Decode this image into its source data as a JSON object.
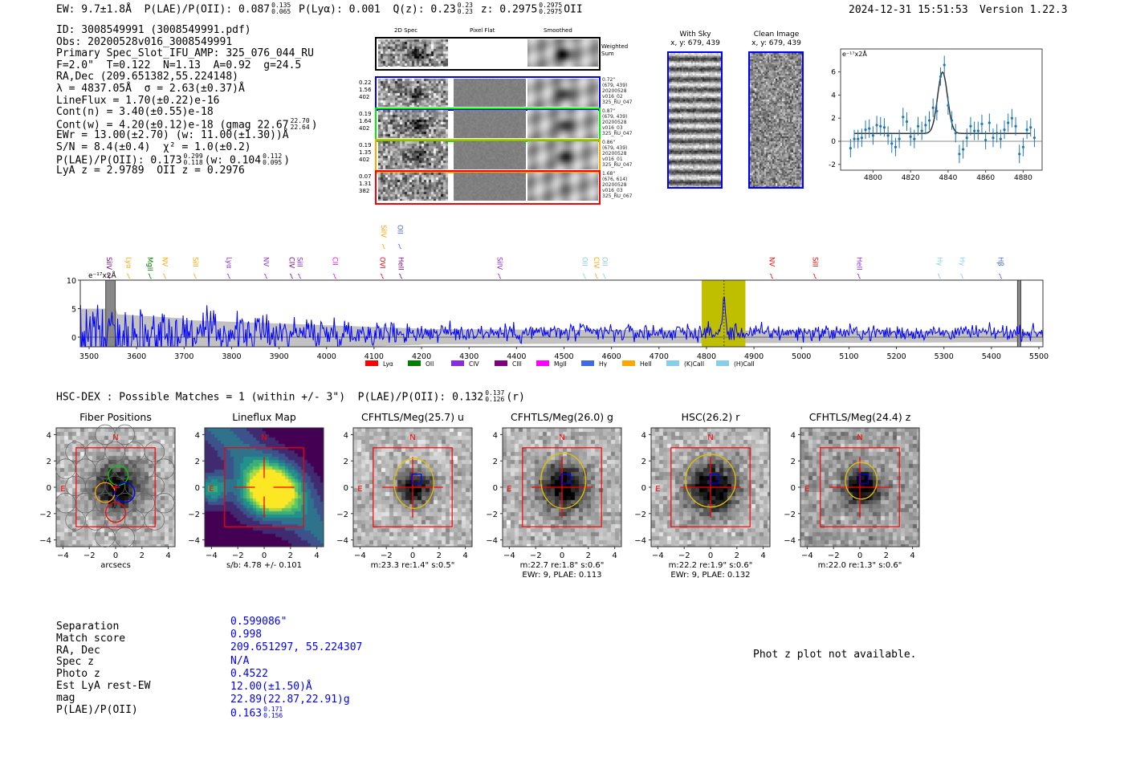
{
  "header": {
    "ew": "EW: 9.7±1.8Å",
    "plae": "P(LAE)/P(OII): 0.087",
    "plae_hi": "0.135",
    "plae_lo": "0.065",
    "plya": "P(Lyα): 0.001",
    "qz": "Q(z): 0.23",
    "qz_hi": "0.23",
    "qz_lo": "0.23",
    "z": "z: 0.2975",
    "z_hi": "0.2975",
    "z_lo": "0.2975",
    "z_line": "OII",
    "datetime": "2024-12-31 15:51:53",
    "version": "Version 1.22.3"
  },
  "info": {
    "lines": [
      {
        "seg": [
          {
            "t": "ID: 3008549991 (3008549991.pdf)"
          }
        ]
      },
      {
        "seg": [
          {
            "t": "Obs: 20200528v016_3008549991"
          }
        ]
      },
      {
        "seg": [
          {
            "t": "Primary Spec_Slot_IFU_AMP: 325_076_044_RU"
          }
        ]
      },
      {
        "seg": [
          {
            "t": "F=2.0\"  T=0.122  N=1.13  A=0.92  g=24.5"
          }
        ]
      },
      {
        "seg": [
          {
            "t": "RA,Dec (209.651382,55.224148)"
          }
        ]
      },
      {
        "seg": [
          {
            "t": "λ = 4837.05Å  σ = 2.63(±0.37)Å"
          }
        ]
      },
      {
        "seg": [
          {
            "t": "LineFlux = 1.70(±0.22)e-16"
          }
        ]
      },
      {
        "seg": [
          {
            "t": "Cont(n) = 3.40(±0.55)e-18"
          }
        ]
      },
      {
        "seg": [
          {
            "t": "Cont(w) = 4.20(±0.12)e-18 (gmag 22.67"
          },
          {
            "hi": "22.70",
            "lo": "22.64"
          },
          {
            "t": ")"
          }
        ]
      },
      {
        "seg": [
          {
            "t": "EWr = 13.00(±2.70) (w: 11.00(±1.30))Å"
          }
        ]
      },
      {
        "seg": [
          {
            "t": "S/N = 8.4(±0.4)  χ² = 1.0(±0.2)"
          }
        ]
      },
      {
        "seg": [
          {
            "t": "P(LAE)/P(OII): 0.173"
          },
          {
            "hi": "0.299",
            "lo": "0.118"
          },
          {
            "t": "(w: 0.104"
          },
          {
            "hi": "0.112",
            "lo": "0.095"
          },
          {
            "t": ")"
          }
        ]
      },
      {
        "seg": [
          {
            "t": "LyA z = 2.9789  OII z = 0.2976"
          }
        ]
      }
    ]
  },
  "spec2d": {
    "columns": [
      "2D Spec",
      "Pixel Flat",
      "Smoothed"
    ],
    "sum_label": "Weighted\nSum",
    "rows": [
      {
        "color": "#0000ff",
        "left": [
          "0.22",
          "1.56",
          "402"
        ],
        "right": [
          "0.72\"",
          "(679, 439)",
          "20200528",
          "v016_02",
          "325_RU_047"
        ]
      },
      {
        "color": "#00ee00",
        "left": [
          "0.19",
          "1.64",
          "402"
        ],
        "right": [
          "0.87\"",
          "(679, 439)",
          "20200528",
          "v016_03",
          "325_RU_047"
        ]
      },
      {
        "color": "#ffa500",
        "left": [
          "0.19",
          "1.35",
          "402"
        ],
        "right": [
          "0.86\"",
          "(679, 439)",
          "20200528",
          "v016_01",
          "325_RU_047"
        ]
      },
      {
        "color": "#ff0000",
        "left": [
          "0.07",
          "1.31",
          "382"
        ],
        "right": [
          "1.68\"",
          "(676, 614)",
          "20200528",
          "v016_03",
          "325_RU_067"
        ]
      }
    ]
  },
  "ccd": {
    "with_sky": {
      "title": "With Sky",
      "coords": "x, y: 679, 439"
    },
    "clean": {
      "title": "Clean Image",
      "coords": "x, y: 679, 439"
    }
  },
  "chart_data": [
    {
      "type": "scatter",
      "title": "",
      "ylabel": "e⁻¹⁷x2Å",
      "xlim": [
        4784,
        4890
      ],
      "ylim": [
        -2.7,
        7.6
      ],
      "xticks": [
        "4800",
        "4820",
        "4840",
        "4860",
        "4880"
      ],
      "yticks": [
        "-2",
        "0",
        "2",
        "4",
        "6"
      ],
      "x": [
        4788,
        4790,
        4792,
        4794,
        4796,
        4798,
        4800,
        4802,
        4804,
        4806,
        4808,
        4810,
        4812,
        4814,
        4816,
        4818,
        4820,
        4822,
        4824,
        4826,
        4828,
        4830,
        4832,
        4834,
        4836,
        4838,
        4840,
        4842,
        4844,
        4846,
        4848,
        4850,
        4852,
        4854,
        4856,
        4858,
        4860,
        4862,
        4864,
        4866,
        4868,
        4870,
        4872,
        4874,
        4876,
        4878,
        4880,
        4882,
        4884,
        4886
      ],
      "y": [
        -0.6,
        0.2,
        0.2,
        0.3,
        1.0,
        1.1,
        0.5,
        1.4,
        1.3,
        1.2,
        0.5,
        -0.2,
        -0.5,
        0.2,
        2.1,
        1.7,
        0.4,
        0.2,
        1.3,
        0.9,
        1.4,
        1.8,
        2.9,
        2.6,
        5.6,
        6.6,
        3.1,
        1.8,
        0.7,
        -1.1,
        -0.7,
        0.3,
        1.3,
        0.9,
        0.9,
        1.5,
        0.1,
        1.6,
        0.3,
        0.7,
        0.2,
        1.0,
        1.6,
        2.0,
        1.3,
        -1.1,
        -0.5,
        1.0,
        1.2,
        0.3
      ],
      "yerr": 0.8,
      "fit": {
        "type": "gaussian",
        "center": 4837.05,
        "sigma": 2.63,
        "amplitude": 5.3,
        "continuum": 0.68
      },
      "colors": {
        "points": "#1f77b4",
        "fit": "#333333"
      }
    },
    {
      "type": "line",
      "ylabel": "e⁻¹⁷x2Å",
      "xlim": [
        3480,
        5510
      ],
      "ylim": [
        -1.7,
        10
      ],
      "xticks": [
        "3500",
        "3600",
        "3700",
        "3800",
        "3900",
        "4000",
        "4100",
        "4200",
        "4300",
        "4400",
        "4500",
        "4600",
        "4700",
        "4800",
        "4900",
        "5000",
        "5100",
        "5200",
        "5300",
        "5400",
        "5500"
      ],
      "yticks": [
        "0",
        "5",
        "10"
      ],
      "emission_line": {
        "wavelength": 4837.05,
        "peak": 6.6
      },
      "highlight_band": [
        4790,
        4882
      ],
      "masked_bands": [
        [
          3535,
          3555
        ],
        [
          5455,
          5462
        ]
      ],
      "colors": {
        "flux": "#0000ff",
        "error": "#bbbbbb",
        "highlight": "#bfbf00"
      },
      "line_labels": [
        {
          "label": "SiIV",
          "w": 3541,
          "color": "#800080",
          "row": 0
        },
        {
          "label": "Lyα",
          "w": 3583,
          "color": "#ffa500",
          "row": 0
        },
        {
          "label": "MgII",
          "w": 3628,
          "color": "#008000",
          "row": 0
        },
        {
          "label": "NV",
          "w": 3659,
          "color": "#ffa500",
          "row": 0
        },
        {
          "label": "SiII",
          "w": 3723,
          "color": "#ffa500",
          "row": 0
        },
        {
          "label": "Lyα",
          "w": 3794,
          "color": "#8a2be2",
          "row": 0
        },
        {
          "label": "NV",
          "w": 3872,
          "color": "#8a2be2",
          "row": 0
        },
        {
          "label": "CIV",
          "w": 3926,
          "color": "#800080",
          "row": 0
        },
        {
          "label": "SiII",
          "w": 3943,
          "color": "#8a2be2",
          "row": 0
        },
        {
          "label": "CII",
          "w": 4017,
          "color": "#ff00ff",
          "row": 0
        },
        {
          "label": "OVI",
          "w": 4117,
          "color": "#ff0000",
          "row": 0
        },
        {
          "label": "HeII",
          "w": 4156,
          "color": "#800080",
          "row": 0
        },
        {
          "label": "SiIV",
          "w": 4120,
          "color": "#ffa500",
          "row": 1
        },
        {
          "label": "OII",
          "w": 4154,
          "color": "#4169e1",
          "row": 1
        },
        {
          "label": "SiIV",
          "w": 4364,
          "color": "#8a2be2",
          "row": 0
        },
        {
          "label": "OII",
          "w": 4543,
          "color": "#87ceeb",
          "row": 0
        },
        {
          "label": "CIV",
          "w": 4568,
          "color": "#ffa500",
          "row": 0
        },
        {
          "label": "OII",
          "w": 4585,
          "color": "#87ceeb",
          "row": 0
        },
        {
          "label": "NV",
          "w": 4937,
          "color": "#ff0000",
          "row": 0
        },
        {
          "label": "SiII",
          "w": 5028,
          "color": "#ff0000",
          "row": 0
        },
        {
          "label": "HeII",
          "w": 5121,
          "color": "#8a2be2",
          "row": 0
        },
        {
          "label": "Hγ",
          "w": 5290,
          "color": "#87ceeb",
          "row": 0
        },
        {
          "label": "Hγ",
          "w": 5338,
          "color": "#87ceeb",
          "row": 0
        },
        {
          "label": "Hβ",
          "w": 5419,
          "color": "#4169e1",
          "row": 0
        }
      ],
      "legend": [
        {
          "label": "Lyα",
          "color": "#ff0000"
        },
        {
          "label": "OII",
          "color": "#008000"
        },
        {
          "label": "CIV",
          "color": "#8a2be2"
        },
        {
          "label": "CIII",
          "color": "#800080"
        },
        {
          "label": "MgII",
          "color": "#ff00ff"
        },
        {
          "label": "Hγ",
          "color": "#4169e1"
        },
        {
          "label": "HeII",
          "color": "#ffa500"
        },
        {
          "label": "(K)CaII",
          "color": "#87ceeb"
        },
        {
          "label": "(H)CaII",
          "color": "#87ceeb"
        }
      ]
    }
  ],
  "matches": {
    "line": "HSC-DEX : Possible Matches = 1 (within +/- 3\")  P(LAE)/P(OII): 0.132",
    "hi": "0.137",
    "lo": "0.126",
    "suffix": "(r)"
  },
  "cutouts": [
    {
      "title": "Fiber Positions",
      "kind": "fibers",
      "sub": [
        "arcsecs"
      ]
    },
    {
      "title": "Lineflux Map",
      "kind": "lineflux",
      "sub": [
        "s/b: 4.78 +/- 0.101"
      ]
    },
    {
      "title": "CFHTLS/Meg(25.7) u",
      "kind": "img",
      "sub": [
        "m:23.3  re:1.4\"  s:0.5\""
      ]
    },
    {
      "title": "CFHTLS/Meg(26.0) g",
      "kind": "img",
      "sub": [
        "m:22.7  re:1.8\"  s:0.6\"",
        "EWr: 9, PLAE: 0.113"
      ]
    },
    {
      "title": "HSC(26.2) r",
      "kind": "img",
      "sub": [
        "m:22.2  re:1.9\"  s:0.6\"",
        "EWr: 9, PLAE: 0.132"
      ]
    },
    {
      "title": "CFHTLS/Meg(24.4) z",
      "kind": "img",
      "sub": [
        "m:22.0  re:1.3\"  s:0.6\""
      ]
    }
  ],
  "cutout_axis": {
    "ticks": [
      "−4",
      "−2",
      "0",
      "2",
      "4"
    ],
    "north": "N",
    "east": "E"
  },
  "table": {
    "labels": [
      "Separation",
      "Match score",
      "RA, Dec",
      "Spec z",
      "Photo z",
      "Est LyA rest-EW",
      "mag",
      "P(LAE)/P(OII)"
    ],
    "values": [
      "0.599086\"",
      "0.998",
      "209.651297, 55.224307",
      "N/A",
      "0.4522",
      "12.00(±1.50)Å",
      "22.89(22.87,22.91)g",
      "0.163"
    ],
    "plae_hi": "0.171",
    "plae_lo": "0.156"
  },
  "photz_note": "Phot z plot not available."
}
